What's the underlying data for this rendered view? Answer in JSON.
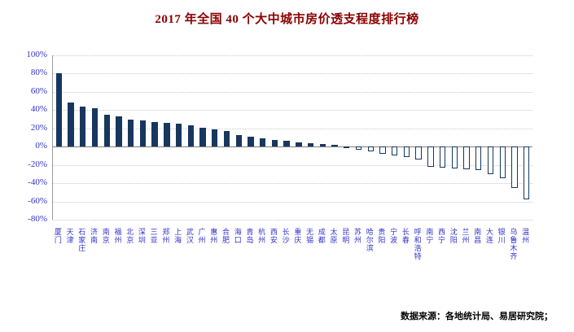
{
  "title": "2017 年全国 40 个大中城市房价透支程度排行榜",
  "source": "数据来源：各地统计局、易居研究院；",
  "colors": {
    "title": "#8B0000",
    "bar": "#17375E",
    "axis_label": "#3333CC",
    "gridline": "#C9C9C9"
  },
  "chart_data": {
    "type": "bar",
    "title": "2017 年全国 40 个大中城市房价透支程度排行榜",
    "categories": [
      "厦门",
      "天津",
      "石家庄",
      "济南",
      "南京",
      "福州",
      "北京",
      "深圳",
      "三亚",
      "郑州",
      "上海",
      "武汉",
      "广州",
      "惠州",
      "合肥",
      "海口",
      "青岛",
      "杭州",
      "西安",
      "长沙",
      "重庆",
      "无锡",
      "成都",
      "太原",
      "昆明",
      "苏州",
      "哈尔滨",
      "贵阳",
      "宁波",
      "长春",
      "呼和浩特",
      "南宁",
      "西宁",
      "沈阳",
      "兰州",
      "南昌",
      "大连",
      "银川",
      "乌鲁木齐",
      "温州"
    ],
    "values": [
      80,
      48,
      44,
      42,
      35,
      33,
      30,
      29,
      27,
      26,
      25,
      23,
      21,
      19,
      17,
      13,
      11,
      9,
      7,
      6,
      5,
      4,
      3,
      2,
      -2,
      -3,
      -5,
      -8,
      -10,
      -11,
      -14,
      -22,
      -23,
      -24,
      -25,
      -26,
      -30,
      -35,
      -45,
      -58
    ],
    "xlabel": "",
    "ylabel": "",
    "ylim": [
      -80,
      100
    ],
    "yticks": [
      100,
      80,
      60,
      40,
      20,
      0,
      -20,
      -40,
      -60,
      -80
    ],
    "ytick_suffix": "%",
    "grid": true,
    "legend": false,
    "bar_style_note": "positive bars solid navy, negative bars hollow with navy outline"
  }
}
